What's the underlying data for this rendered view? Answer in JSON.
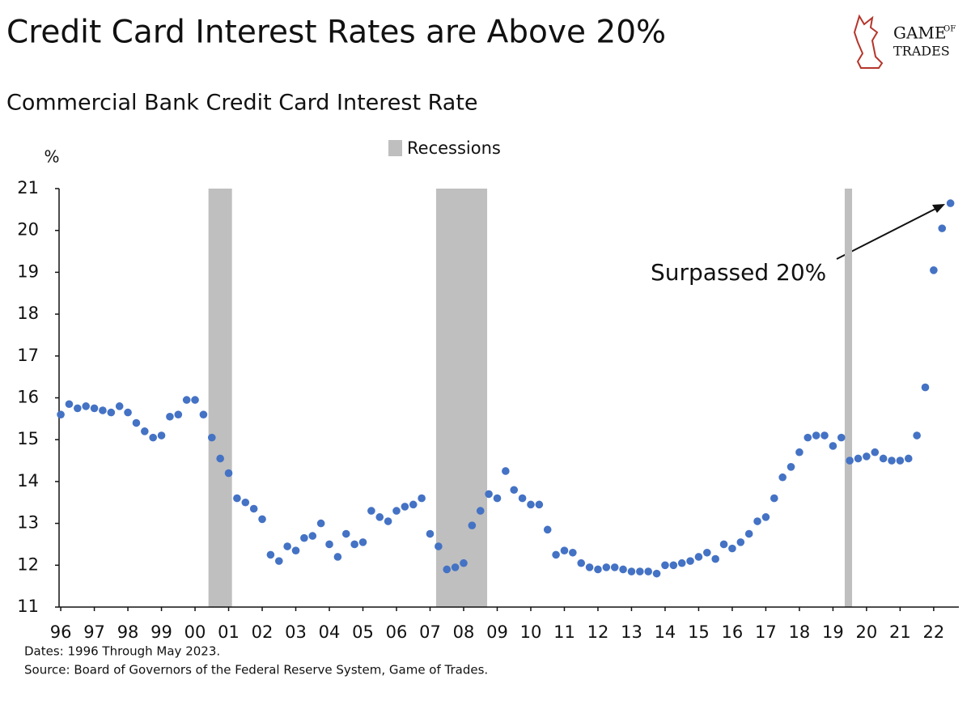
{
  "logo": [
    "GAME",
    "OF",
    "TRADES"
  ],
  "chart_data": {
    "type": "scatter",
    "title": "Credit Card Interest Rates are Above 20%",
    "subtitle": "Commercial Bank Credit Card Interest Rate",
    "y_label": "%",
    "annotation": "Surpassed 20%",
    "notes": [
      "Dates: 1996 Through May 2023.",
      "Source: Board of Governors of the Federal Reserve System, Game of Trades."
    ],
    "recessions": [
      {
        "name": "Recessions",
        "color": "#bfbfbf",
        "spans": [
          [
            2000.4,
            2001.1
          ],
          [
            2007.18,
            2008.7
          ],
          [
            2019.35,
            2019.57
          ]
        ]
      }
    ],
    "x": [
      1996,
      1996.25,
      1996.5,
      1996.75,
      1997,
      1997.25,
      1997.5,
      1997.75,
      1998,
      1998.25,
      1998.5,
      1998.75,
      1999,
      1999.25,
      1999.5,
      1999.75,
      2000,
      2000.25,
      2000.5,
      2000.75,
      2001,
      2001.25,
      2001.5,
      2001.75,
      2002,
      2002.25,
      2002.5,
      2002.75,
      2003,
      2003.25,
      2003.5,
      2003.75,
      2004,
      2004.25,
      2004.5,
      2004.75,
      2005,
      2005.25,
      2005.5,
      2005.75,
      2006,
      2006.25,
      2006.5,
      2006.75,
      2007,
      2007.25,
      2007.5,
      2007.75,
      2008,
      2008.25,
      2008.5,
      2008.75,
      2009,
      2009.25,
      2009.5,
      2009.75,
      2010,
      2010.25,
      2010.5,
      2010.75,
      2011,
      2011.25,
      2011.5,
      2011.75,
      2012,
      2012.25,
      2012.5,
      2012.75,
      2013,
      2013.25,
      2013.5,
      2013.75,
      2014,
      2014.25,
      2014.5,
      2014.75,
      2015,
      2015.25,
      2015.5,
      2015.75,
      2016,
      2016.25,
      2016.5,
      2016.75,
      2017,
      2017.25,
      2017.5,
      2017.75,
      2018,
      2018.25,
      2018.5,
      2018.75,
      2019,
      2019.25,
      2019.5,
      2019.75,
      2020,
      2020.25,
      2020.5,
      2020.75,
      2021,
      2021.25,
      2021.5,
      2021.75,
      2022,
      2022.25,
      2022.5
    ],
    "series": [
      {
        "color": "#4472c4",
        "values": [
          15.6,
          15.85,
          15.75,
          15.8,
          15.75,
          15.7,
          15.65,
          15.8,
          15.65,
          15.4,
          15.2,
          15.05,
          15.1,
          15.55,
          15.6,
          15.95,
          15.95,
          15.6,
          15.05,
          14.55,
          14.2,
          13.6,
          13.5,
          13.35,
          13.1,
          12.25,
          12.1,
          12.45,
          12.35,
          12.65,
          12.7,
          13.0,
          12.5,
          12.2,
          12.75,
          12.5,
          12.55,
          13.3,
          13.15,
          13.05,
          13.3,
          13.4,
          13.45,
          13.6,
          12.75,
          12.45,
          11.9,
          11.95,
          12.05,
          12.95,
          13.3,
          13.7,
          13.6,
          14.25,
          13.8,
          13.6,
          13.45,
          13.45,
          12.85,
          12.25,
          12.35,
          12.3,
          12.05,
          11.95,
          11.9,
          11.95,
          11.95,
          11.9,
          11.85,
          11.85,
          11.85,
          11.8,
          12.0,
          12.0,
          12.05,
          12.1,
          12.2,
          12.3,
          12.15,
          12.5,
          12.4,
          12.55,
          12.75,
          13.05,
          13.15,
          13.6,
          14.1,
          14.35,
          14.7,
          15.05,
          15.1,
          15.1,
          14.85,
          15.05,
          14.5,
          14.55,
          14.6,
          14.7,
          14.55,
          14.5,
          14.5,
          14.55,
          15.1,
          16.25,
          19.05,
          20.05,
          20.65
        ]
      }
    ],
    "xlim": [
      1995.95,
      2022.75
    ],
    "ylim": [
      11,
      21
    ],
    "yticks": [
      11,
      12,
      13,
      14,
      15,
      16,
      17,
      18,
      19,
      20,
      21
    ],
    "xticks": [
      {
        "value": 1996,
        "label": "96"
      },
      {
        "value": 1997,
        "label": "97"
      },
      {
        "value": 1998,
        "label": "98"
      },
      {
        "value": 1999,
        "label": "99"
      },
      {
        "value": 2000,
        "label": "00"
      },
      {
        "value": 2001,
        "label": "01"
      },
      {
        "value": 2002,
        "label": "02"
      },
      {
        "value": 2003,
        "label": "03"
      },
      {
        "value": 2004,
        "label": "04"
      },
      {
        "value": 2005,
        "label": "05"
      },
      {
        "value": 2006,
        "label": "06"
      },
      {
        "value": 2007,
        "label": "07"
      },
      {
        "value": 2008,
        "label": "08"
      },
      {
        "value": 2009,
        "label": "09"
      },
      {
        "value": 2010,
        "label": "10"
      },
      {
        "value": 2011,
        "label": "11"
      },
      {
        "value": 2012,
        "label": "12"
      },
      {
        "value": 2013,
        "label": "13"
      },
      {
        "value": 2014,
        "label": "14"
      },
      {
        "value": 2015,
        "label": "15"
      },
      {
        "value": 2016,
        "label": "16"
      },
      {
        "value": 2017,
        "label": "17"
      },
      {
        "value": 2018,
        "label": "18"
      },
      {
        "value": 2019,
        "label": "19"
      },
      {
        "value": 2020,
        "label": "20"
      },
      {
        "value": 2021,
        "label": "21"
      },
      {
        "value": 2022,
        "label": "22"
      }
    ],
    "grid": false
  }
}
